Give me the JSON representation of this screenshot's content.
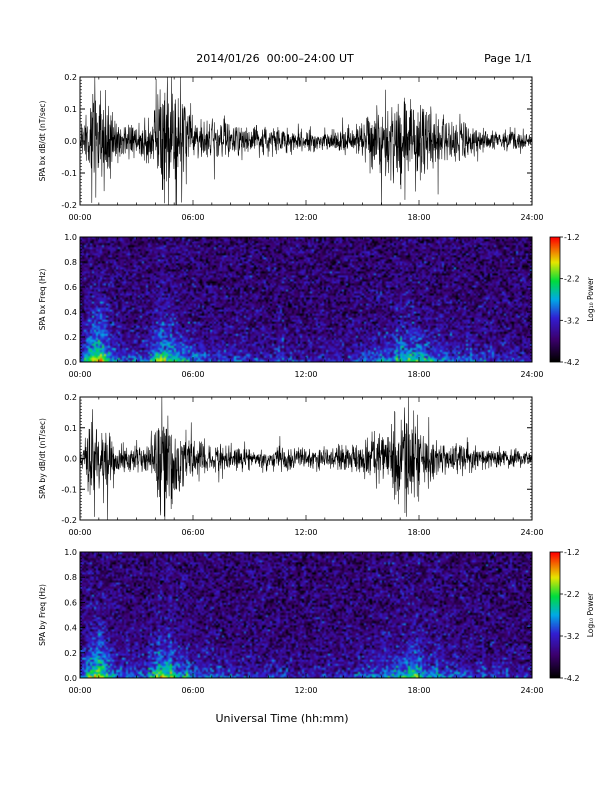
{
  "header": {
    "title": "2014/01/26  00:00–24:00 UT",
    "page": "Page 1/1"
  },
  "xlabel_common": "Universal Time (hh:mm)",
  "chart_data": [
    {
      "type": "line",
      "ylabel": "SPA bx dB/dt (nT/sec)",
      "xlim": [
        0,
        24
      ],
      "ylim": [
        -0.2,
        0.2
      ],
      "x_ticks": [
        "00:00",
        "06:00",
        "12:00",
        "18:00",
        "24:00"
      ],
      "y_ticks": [
        -0.2,
        -0.1,
        0.0,
        0.1,
        0.2
      ],
      "envelope": [
        [
          0,
          0.03
        ],
        [
          0.4,
          0.09
        ],
        [
          0.7,
          0.22
        ],
        [
          1.2,
          0.16
        ],
        [
          1.6,
          0.1
        ],
        [
          2.2,
          0.05
        ],
        [
          3.0,
          0.05
        ],
        [
          3.8,
          0.08
        ],
        [
          4.2,
          0.22
        ],
        [
          4.8,
          0.16
        ],
        [
          5.2,
          0.19
        ],
        [
          5.7,
          0.12
        ],
        [
          6.2,
          0.08
        ],
        [
          7.0,
          0.07
        ],
        [
          8.0,
          0.06
        ],
        [
          9.5,
          0.05
        ],
        [
          11.0,
          0.04
        ],
        [
          12.0,
          0.04
        ],
        [
          13.0,
          0.03
        ],
        [
          14.0,
          0.04
        ],
        [
          15.0,
          0.07
        ],
        [
          16.0,
          0.12
        ],
        [
          16.8,
          0.15
        ],
        [
          17.5,
          0.17
        ],
        [
          18.2,
          0.13
        ],
        [
          19.0,
          0.08
        ],
        [
          20.0,
          0.07
        ],
        [
          21.0,
          0.05
        ],
        [
          22.0,
          0.04
        ],
        [
          24.0,
          0.03
        ]
      ]
    },
    {
      "type": "heatmap",
      "ylabel": "SPA bx Freq (Hz)",
      "xlim": [
        0,
        24
      ],
      "ylim": [
        0.0,
        1.0
      ],
      "x_ticks": [
        "00:00",
        "06:00",
        "12:00",
        "18:00",
        "24:00"
      ],
      "y_ticks": [
        0.0,
        0.2,
        0.4,
        0.6,
        0.8,
        1.0
      ],
      "colorbar_label": "Log₁₀ Power",
      "colorbar_ticks": [
        -1.2,
        -2.2,
        -3.2,
        -4.2
      ],
      "clim": [
        -4.2,
        -1.2
      ],
      "activity": [
        [
          0,
          0.4
        ],
        [
          0.5,
          0.8
        ],
        [
          1.0,
          1.0
        ],
        [
          1.5,
          0.6
        ],
        [
          2.2,
          0.35
        ],
        [
          3.5,
          0.35
        ],
        [
          4.2,
          0.9
        ],
        [
          4.8,
          0.7
        ],
        [
          5.5,
          0.55
        ],
        [
          6.5,
          0.35
        ],
        [
          8.0,
          0.3
        ],
        [
          10.0,
          0.25
        ],
        [
          12.0,
          0.2
        ],
        [
          13.5,
          0.2
        ],
        [
          15.0,
          0.3
        ],
        [
          16.0,
          0.45
        ],
        [
          17.0,
          0.55
        ],
        [
          17.6,
          0.75
        ],
        [
          18.5,
          0.5
        ],
        [
          20.0,
          0.35
        ],
        [
          22.0,
          0.25
        ],
        [
          24.0,
          0.2
        ]
      ]
    },
    {
      "type": "line",
      "ylabel": "SPA by dB/dt (nT/sec)",
      "xlim": [
        0,
        24
      ],
      "ylim": [
        -0.2,
        0.2
      ],
      "x_ticks": [
        "00:00",
        "06:00",
        "12:00",
        "18:00",
        "24:00"
      ],
      "y_ticks": [
        -0.2,
        -0.1,
        0.0,
        0.1,
        0.2
      ],
      "envelope": [
        [
          0,
          0.03
        ],
        [
          0.4,
          0.08
        ],
        [
          0.7,
          0.18
        ],
        [
          1.2,
          0.12
        ],
        [
          1.6,
          0.07
        ],
        [
          2.5,
          0.04
        ],
        [
          3.5,
          0.05
        ],
        [
          4.0,
          0.09
        ],
        [
          4.3,
          0.22
        ],
        [
          4.8,
          0.16
        ],
        [
          5.4,
          0.13
        ],
        [
          6.2,
          0.07
        ],
        [
          7.0,
          0.05
        ],
        [
          9.0,
          0.04
        ],
        [
          11.0,
          0.035
        ],
        [
          12.5,
          0.04
        ],
        [
          14.0,
          0.04
        ],
        [
          15.0,
          0.06
        ],
        [
          16.0,
          0.1
        ],
        [
          16.8,
          0.14
        ],
        [
          17.4,
          0.19
        ],
        [
          18.0,
          0.12
        ],
        [
          19.0,
          0.06
        ],
        [
          21.0,
          0.04
        ],
        [
          24.0,
          0.03
        ]
      ]
    },
    {
      "type": "heatmap",
      "ylabel": "SPA by Freq (Hz)",
      "xlim": [
        0,
        24
      ],
      "ylim": [
        0.0,
        1.0
      ],
      "x_ticks": [
        "00:00",
        "06:00",
        "12:00",
        "18:00",
        "24:00"
      ],
      "y_ticks": [
        0.0,
        0.2,
        0.4,
        0.6,
        0.8,
        1.0
      ],
      "colorbar_label": "Log₁₀ Power",
      "colorbar_ticks": [
        -1.2,
        -2.2,
        -3.2,
        -4.2
      ],
      "clim": [
        -4.2,
        -1.2
      ],
      "activity": [
        [
          0,
          0.4
        ],
        [
          0.5,
          0.8
        ],
        [
          1.0,
          0.95
        ],
        [
          1.5,
          0.6
        ],
        [
          2.2,
          0.35
        ],
        [
          3.5,
          0.35
        ],
        [
          4.2,
          0.85
        ],
        [
          4.8,
          0.65
        ],
        [
          5.5,
          0.5
        ],
        [
          6.5,
          0.35
        ],
        [
          8.0,
          0.3
        ],
        [
          10.0,
          0.25
        ],
        [
          12.0,
          0.2
        ],
        [
          13.5,
          0.2
        ],
        [
          15.0,
          0.3
        ],
        [
          16.0,
          0.45
        ],
        [
          17.0,
          0.55
        ],
        [
          17.6,
          0.75
        ],
        [
          18.5,
          0.5
        ],
        [
          20.0,
          0.35
        ],
        [
          22.0,
          0.25
        ],
        [
          24.0,
          0.2
        ]
      ]
    }
  ]
}
